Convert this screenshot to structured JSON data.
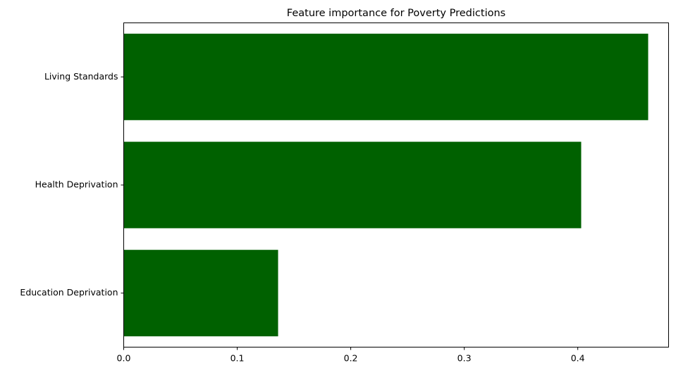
{
  "chart_data": {
    "type": "bar",
    "orientation": "horizontal",
    "title": "Feature importance for Poverty Predictions",
    "xlabel": "",
    "ylabel": "",
    "categories": [
      "Living Standards",
      "Health Deprivation",
      "Education Deprivation"
    ],
    "values": [
      0.462,
      0.403,
      0.136
    ],
    "xlim": [
      0,
      0.48
    ],
    "xticks": [
      "0.0",
      "0.1",
      "0.2",
      "0.3",
      "0.4"
    ],
    "grid": false,
    "bar_color": "#006100"
  }
}
